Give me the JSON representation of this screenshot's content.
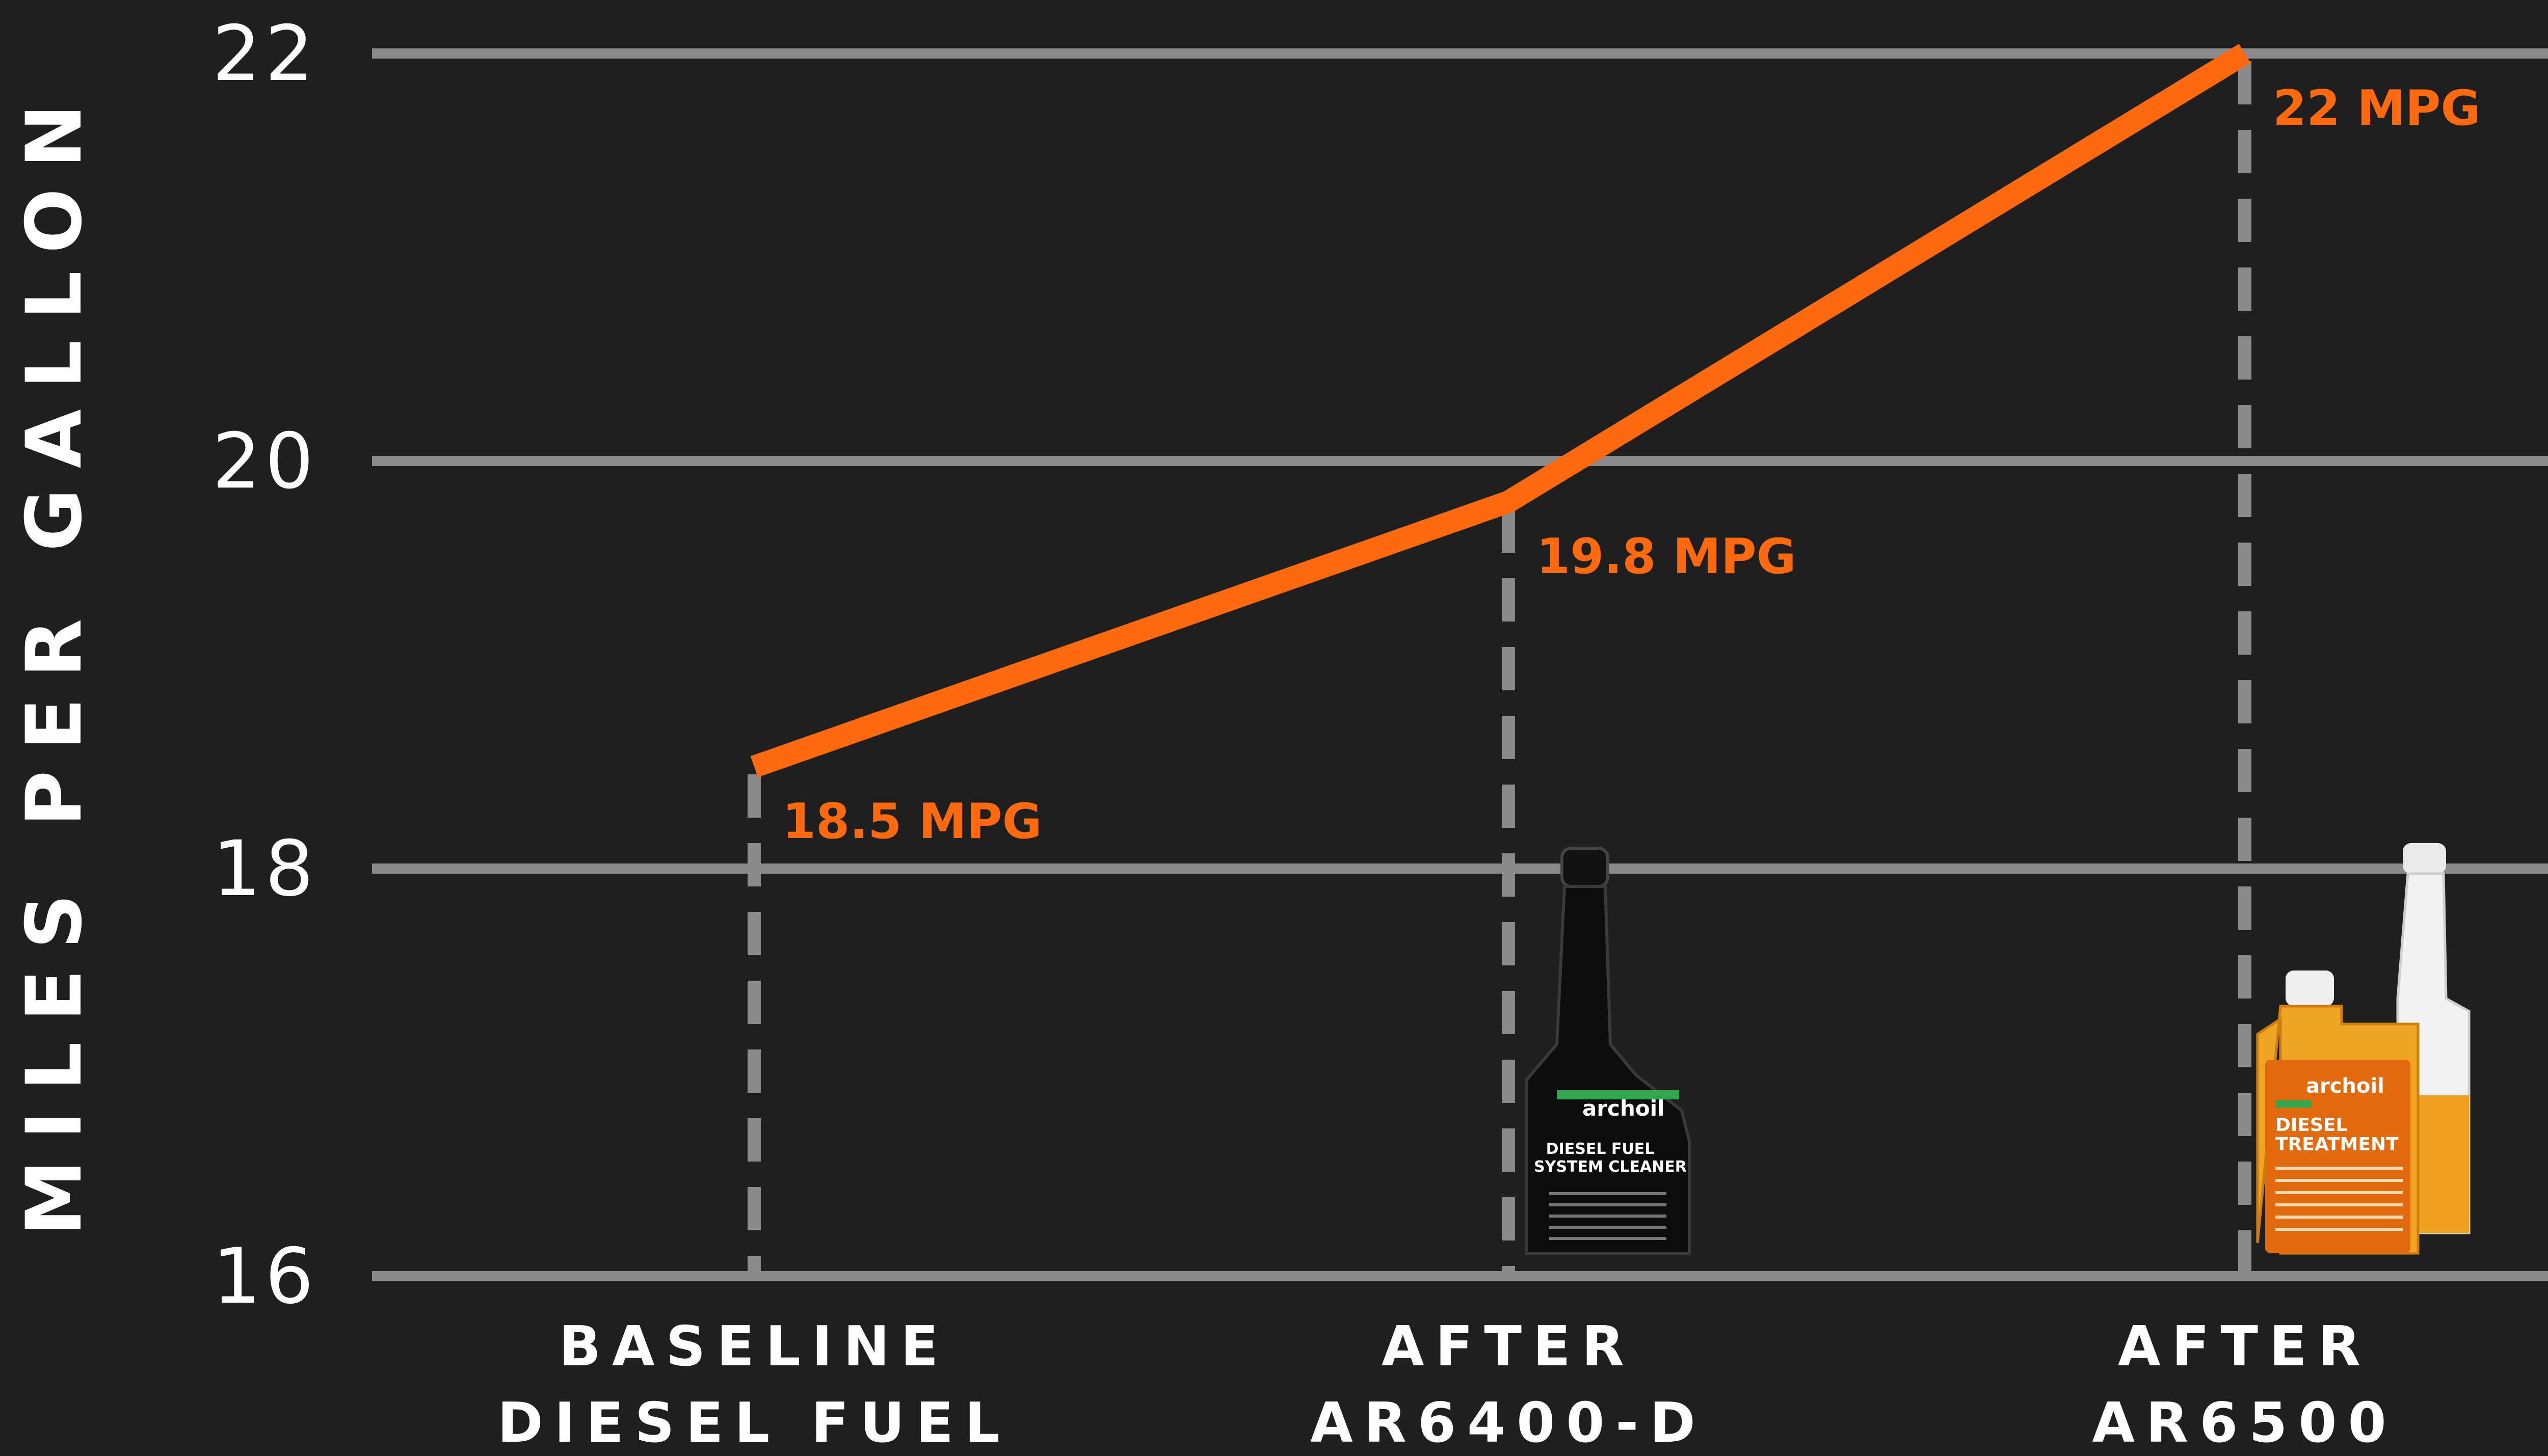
{
  "chart_data": {
    "type": "line",
    "ylabel": "MILES PER GALLON",
    "ylim": [
      16,
      22
    ],
    "yticks": [
      "16",
      "18",
      "20",
      "22"
    ],
    "grid": true,
    "categories": [
      [
        "BASELINE",
        "DIESEL FUEL"
      ],
      [
        "AFTER",
        "AR6400-D"
      ],
      [
        "AFTER",
        "AR6500"
      ]
    ],
    "series": [
      {
        "values": [
          18.5,
          19.8,
          22
        ],
        "color": "#ff6a10"
      }
    ],
    "data_labels": [
      "18.5 MPG",
      "19.8 MPG",
      "22 MPG"
    ],
    "products": [
      {
        "under_category": 1,
        "brand": "archoil",
        "line1": "DIESEL FUEL",
        "line2": "SYSTEM CLEANER"
      },
      {
        "under_category": 2,
        "brand": "archoil",
        "line1": "DIESEL",
        "line2": "TREATMENT"
      }
    ],
    "colors": {
      "background": "#1f1f1f",
      "grid": "#8a8a8a",
      "line": "#ff6a10",
      "text": "#ffffff"
    }
  }
}
